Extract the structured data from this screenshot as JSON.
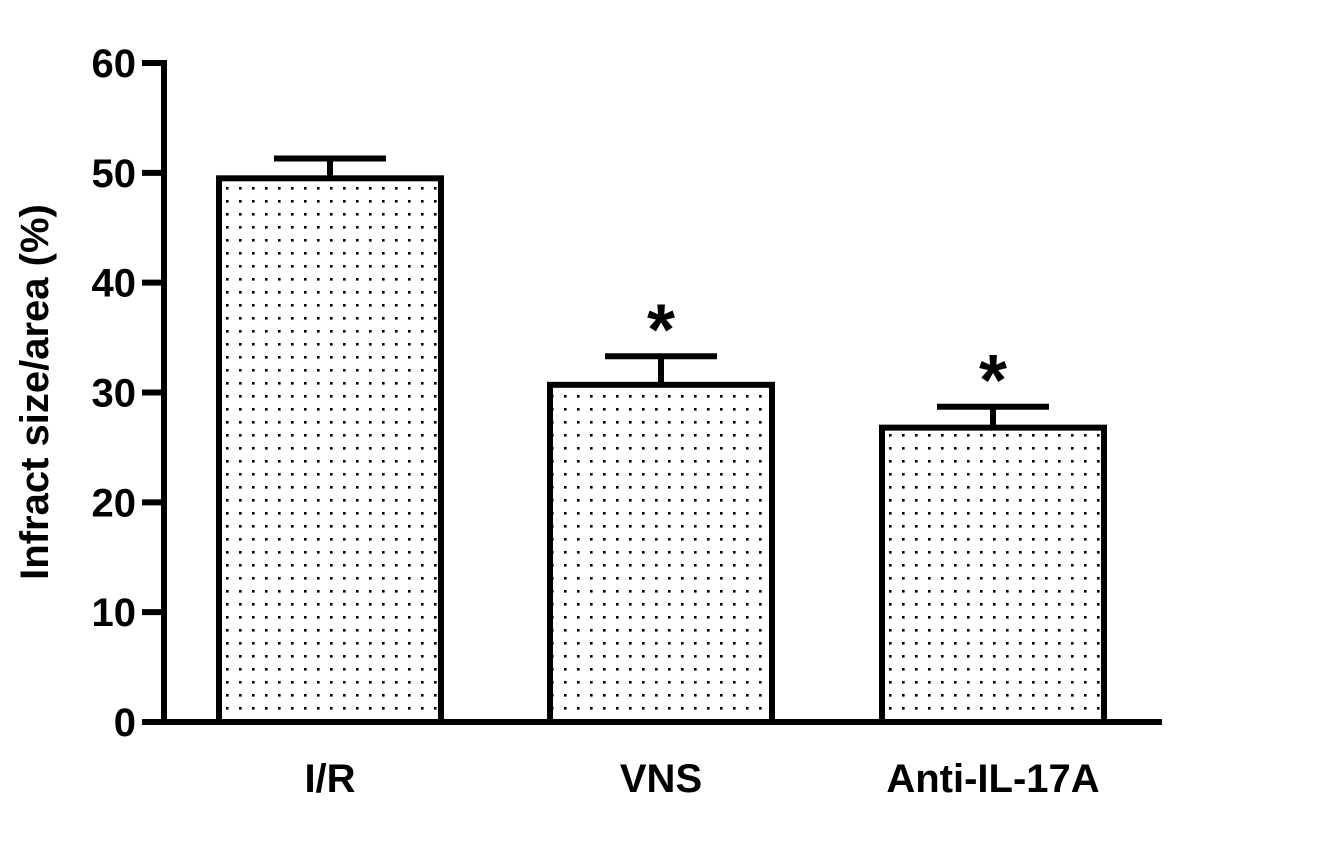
{
  "chart_data": {
    "type": "bar",
    "title": "",
    "xlabel": "",
    "ylabel": "Infract size/area (%)",
    "categories": [
      "I/R",
      "VNS",
      "Anti-IL-17A"
    ],
    "values": [
      49.5,
      30.7,
      26.8
    ],
    "error": [
      1.8,
      2.6,
      1.9
    ],
    "annotations": [
      "",
      "*",
      "*"
    ],
    "ylim": [
      0,
      60
    ],
    "yticks": [
      0,
      10,
      20,
      30,
      40,
      50,
      60
    ],
    "grid": false,
    "legend": "none",
    "bar_fill": "dotted-pattern",
    "colors": {
      "bar_stroke": "#000000",
      "bar_fill": "#ffffff",
      "dot": "#000000",
      "axis": "#000000"
    }
  }
}
